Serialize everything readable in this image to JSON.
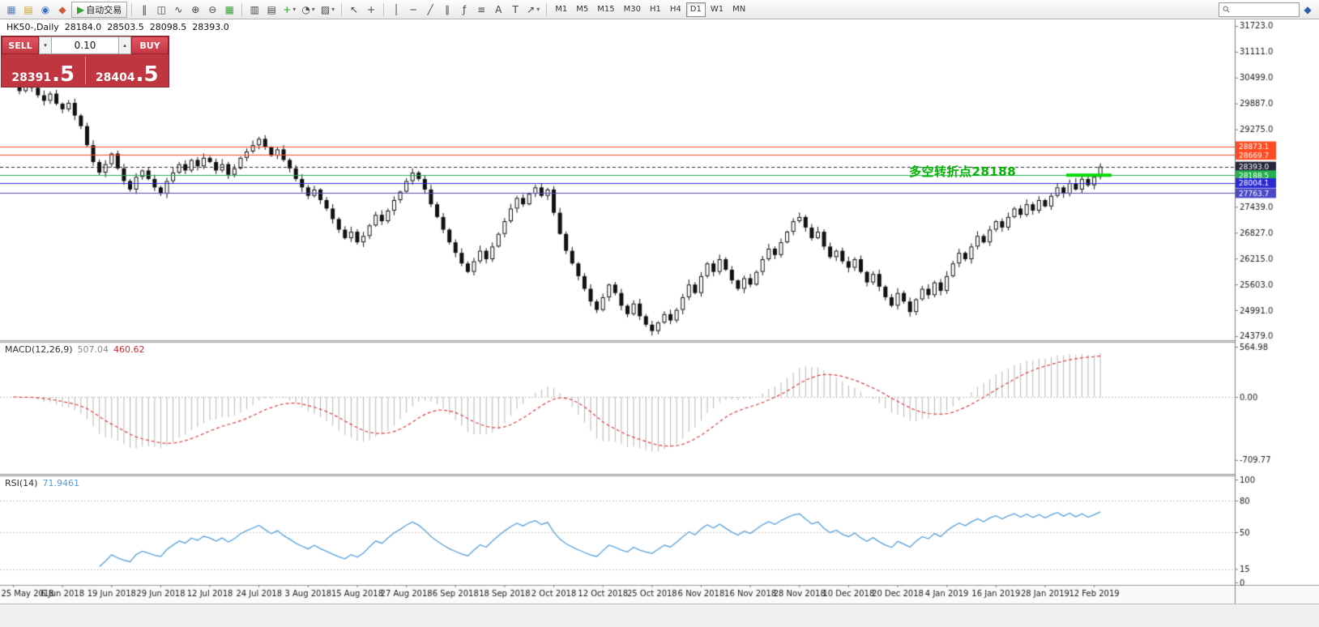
{
  "toolbar": {
    "left_buttons": [
      {
        "name": "charts-button",
        "glyph": "▦",
        "color": "#5a7fb5"
      },
      {
        "name": "profiles-button",
        "glyph": "▤",
        "color": "#c9a227"
      },
      {
        "name": "market-watch-button",
        "glyph": "◉",
        "color": "#3b76c4"
      },
      {
        "name": "new-order-button",
        "glyph": "◆",
        "color": "#cf5a3b"
      }
    ],
    "auto_trading": {
      "name": "auto-trading-button",
      "glyph": "▶",
      "color": "#2fa52f",
      "label": "自动交易"
    },
    "chart_tools": [
      {
        "name": "bar-chart-button",
        "glyph": "‖"
      },
      {
        "name": "candlestick-chart-button",
        "glyph": "◫"
      },
      {
        "name": "line-chart-button",
        "glyph": "∿"
      },
      {
        "name": "zoom-in-button",
        "glyph": "⊕"
      },
      {
        "name": "zoom-out-button",
        "glyph": "⊖"
      },
      {
        "name": "tile-windows-button",
        "glyph": "▦",
        "color": "#3aa33a"
      }
    ],
    "insert_tools": [
      {
        "name": "arrange-charts-button",
        "glyph": "▥"
      },
      {
        "name": "cascade-charts-button",
        "glyph": "▤"
      },
      {
        "name": "indicators-button",
        "glyph": "+",
        "color": "#2fa52f",
        "caret": true
      },
      {
        "name": "periods-button",
        "glyph": "◔",
        "caret": true
      },
      {
        "name": "templates-button",
        "glyph": "▨",
        "caret": true
      }
    ],
    "cursor_tools": [
      {
        "name": "cursor-button",
        "glyph": "↖"
      },
      {
        "name": "crosshair-button",
        "glyph": "+"
      }
    ],
    "drawing_tools": [
      {
        "name": "vertical-line-button",
        "glyph": "│"
      },
      {
        "name": "horizontal-line-button",
        "glyph": "─"
      },
      {
        "name": "trendline-button",
        "glyph": "╱"
      },
      {
        "name": "equidistant-channel-button",
        "glyph": "∥"
      },
      {
        "name": "fibonacci-button",
        "glyph": "ƒ"
      },
      {
        "name": "shapes-button",
        "glyph": "≡"
      },
      {
        "name": "text-button",
        "glyph": "A"
      },
      {
        "name": "label-button",
        "glyph": "T"
      },
      {
        "name": "arrows-button",
        "glyph": "↗",
        "caret": true
      }
    ],
    "timeframes": [
      "M1",
      "M5",
      "M15",
      "M30",
      "H1",
      "H4",
      "D1",
      "W1",
      "MN"
    ],
    "active_timeframe": "D1",
    "search": {
      "value": "",
      "placeholder": ""
    },
    "community": {
      "glyph": "◆",
      "color": "#2b5fb0"
    }
  },
  "symbol_info": {
    "name": "HK50-,Daily",
    "open": "28184.0",
    "high": "28503.5",
    "low": "28098.5",
    "close": "28393.0"
  },
  "trade_panel": {
    "sell_label": "SELL",
    "buy_label": "BUY",
    "volume": "0.10",
    "volume_down_glyph": "▾",
    "volume_up_glyph": "▴",
    "sell_price": {
      "main": "28391",
      "big": ".5"
    },
    "buy_price": {
      "main": "28404",
      "big": ".5"
    }
  },
  "chart_data": {
    "type": "candlestick",
    "title": "HK50 Daily",
    "symbol": "HK50",
    "timeframe": "Daily",
    "ohlc_display": {
      "open": "28184.0",
      "high": "28503.5",
      "low": "28098.5",
      "close": "28393.0"
    },
    "y_range_top": 31876,
    "y_range_bottom": 24282,
    "closes": [
      30350,
      30180,
      30420,
      30260,
      30080,
      29950,
      30120,
      29880,
      29750,
      29900,
      29600,
      29350,
      28900,
      28500,
      28250,
      28450,
      28700,
      28350,
      28050,
      27850,
      28150,
      28300,
      28100,
      27900,
      27750,
      28050,
      28250,
      28450,
      28300,
      28550,
      28400,
      28600,
      28500,
      28300,
      28450,
      28200,
      28350,
      28600,
      28750,
      28900,
      29050,
      28850,
      28650,
      28800,
      28550,
      28350,
      28100,
      27900,
      27700,
      27850,
      27600,
      27400,
      27150,
      26900,
      26700,
      26850,
      26600,
      26750,
      27000,
      27250,
      27100,
      27350,
      27600,
      27800,
      28050,
      28250,
      28100,
      27850,
      27500,
      27200,
      26900,
      26600,
      26350,
      26100,
      25900,
      26150,
      26400,
      26200,
      26500,
      26800,
      27100,
      27400,
      27650,
      27500,
      27750,
      27900,
      27700,
      27850,
      27300,
      26800,
      26400,
      26100,
      25800,
      25500,
      25200,
      25000,
      25300,
      25600,
      25400,
      25100,
      24900,
      25150,
      24850,
      24650,
      24500,
      24700,
      24900,
      24750,
      25000,
      25300,
      25600,
      25400,
      25800,
      26100,
      25900,
      26200,
      25950,
      25700,
      25500,
      25750,
      25600,
      25900,
      26200,
      26450,
      26300,
      26600,
      26850,
      27100,
      27200,
      26950,
      26700,
      26850,
      26500,
      26250,
      26400,
      26150,
      26000,
      26200,
      25900,
      25650,
      25850,
      25550,
      25300,
      25100,
      25400,
      25200,
      24950,
      25250,
      25500,
      25350,
      25650,
      25450,
      25800,
      26100,
      26350,
      26200,
      26500,
      26750,
      26600,
      26900,
      27100,
      26950,
      27200,
      27400,
      27250,
      27500,
      27350,
      27600,
      27450,
      27700,
      27900,
      27750,
      28000,
      27850,
      28100,
      27950,
      28150,
      28393
    ],
    "x_labels": [
      "25 May 2018",
      "6 Jun 2018",
      "19 Jun 2018",
      "29 Jun 2018",
      "12 Jul 2018",
      "24 Jul 2018",
      "3 Aug 2018",
      "15 Aug 2018",
      "27 Aug 2018",
      "6 Sep 2018",
      "18 Sep 2018",
      "2 Oct 2018",
      "12 Oct 2018",
      "25 Oct 2018",
      "6 Nov 2018",
      "16 Nov 2018",
      "28 Nov 2018",
      "10 Dec 2018",
      "20 Dec 2018",
      "4 Jan 2019",
      "16 Jan 2019",
      "28 Jan 2019",
      "12 Feb 2019"
    ],
    "bars_per_label": 8,
    "y_axis_ticks": [
      "31723.0",
      "31111.0",
      "30499.0",
      "29887.0",
      "29275.0",
      "28663.0",
      "28051.0",
      "27439.0",
      "26827.0",
      "26215.0",
      "25603.0",
      "24991.0",
      "24379.0"
    ],
    "price_lines": [
      {
        "price": 28873.1,
        "label": "28873.1",
        "color": "#ff4b21",
        "style": "solid"
      },
      {
        "price": 28669.7,
        "label": "28669.7",
        "color": "#ff4b21",
        "style": "solid"
      },
      {
        "price": 28393.0,
        "label": "28393.0",
        "color": "#26263c",
        "style": "dashed"
      },
      {
        "price": 28188.5,
        "label": "28188.5",
        "color": "#22b14c",
        "style": "solid"
      },
      {
        "price": 28004.1,
        "label": "28004.1",
        "color": "#2a2ad4",
        "style": "solid"
      },
      {
        "price": 27763.7,
        "label": "27763.7",
        "color": "#4b48c8",
        "style": "solid"
      }
    ],
    "highlight_segment": {
      "price": 28188.5,
      "color": "#00d800"
    },
    "annotation": {
      "text": "多空转折点28188",
      "color": "#00b400"
    }
  },
  "macd": {
    "label": "MACD(12,26,9)",
    "main_value": "507.04",
    "signal_value": "460.62",
    "params": {
      "fast": 12,
      "slow": 26,
      "signal": 9
    },
    "axis_labels": [
      "564.98",
      "0.00",
      "-709.77"
    ],
    "histogram_color": "#b6b6b6",
    "signal_color": "#e23b3b"
  },
  "rsi": {
    "label": "RSI(14)",
    "value": "71.9461",
    "period": 14,
    "axis_labels": [
      "100",
      "80",
      "50",
      "15",
      "0"
    ],
    "levels": [
      80,
      50,
      15
    ],
    "line_color": "#55a0dd"
  }
}
